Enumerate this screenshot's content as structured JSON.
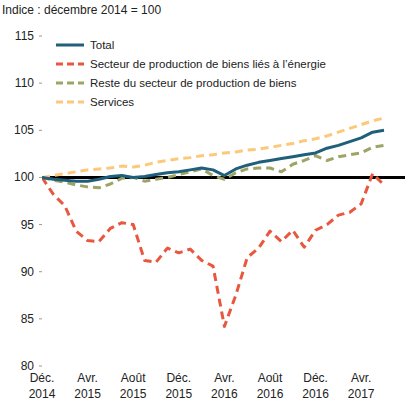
{
  "chart_data": {
    "type": "line",
    "y_label": "Indice : décembre 2014 = 100",
    "categories": [
      "Déc. 2014",
      null,
      null,
      null,
      "Avr. 2015",
      null,
      null,
      null,
      "Août 2015",
      null,
      null,
      null,
      "Déc. 2015",
      null,
      null,
      null,
      "Avr. 2016",
      null,
      null,
      null,
      "Août 2016",
      null,
      null,
      null,
      "Déc. 2016",
      null,
      null,
      null,
      "Avr. 2017",
      null,
      null
    ],
    "series": [
      {
        "name": "Total",
        "color": "#1f5f7a",
        "line_style": "solid",
        "values": [
          100,
          99.8,
          99.7,
          99.6,
          99.6,
          99.8,
          100.1,
          100.2,
          100.0,
          100.1,
          100.3,
          100.5,
          100.6,
          100.8,
          101.0,
          100.8,
          100.2,
          100.9,
          101.3,
          101.6,
          101.8,
          102.0,
          102.2,
          102.4,
          102.6,
          103.1,
          103.4,
          103.8,
          104.2,
          104.8,
          105.0
        ]
      },
      {
        "name": "Secteur de production de biens liés à l’énergie",
        "color": "#e8573f",
        "line_style": "dashed",
        "values": [
          100,
          98.2,
          97.0,
          94.3,
          93.3,
          93.2,
          94.6,
          95.2,
          95.0,
          91.2,
          91.0,
          92.5,
          92.0,
          92.4,
          91.2,
          90.6,
          84.2,
          87.5,
          91.5,
          92.5,
          94.3,
          93.2,
          94.4,
          92.6,
          94.4,
          95.0,
          96.0,
          96.3,
          97.2,
          100.4,
          99.2
        ]
      },
      {
        "name": "Reste du secteur de production de biens",
        "color": "#9ea466",
        "line_style": "dashed",
        "values": [
          100,
          99.7,
          99.5,
          99.2,
          99.0,
          98.9,
          99.3,
          99.9,
          100.0,
          99.6,
          99.8,
          100.0,
          100.3,
          100.6,
          100.9,
          100.2,
          99.8,
          100.5,
          100.9,
          101.0,
          101.0,
          100.6,
          101.4,
          101.8,
          102.3,
          101.8,
          102.2,
          102.4,
          102.6,
          103.2,
          103.4
        ]
      },
      {
        "name": "Services",
        "color": "#fcc87a",
        "line_style": "dashed",
        "values": [
          100,
          100.2,
          100.4,
          100.6,
          100.8,
          100.9,
          101.0,
          101.2,
          101.1,
          101.3,
          101.6,
          101.8,
          102.0,
          102.1,
          102.3,
          102.4,
          102.6,
          102.7,
          102.9,
          103.0,
          103.2,
          103.4,
          103.6,
          103.9,
          104.1,
          104.4,
          104.8,
          105.2,
          105.6,
          106.0,
          106.3
        ]
      }
    ],
    "ylim": [
      80,
      115
    ],
    "yticks": [
      80,
      85,
      90,
      95,
      100,
      105,
      110,
      115
    ],
    "grid": false,
    "legend": "upper left"
  }
}
